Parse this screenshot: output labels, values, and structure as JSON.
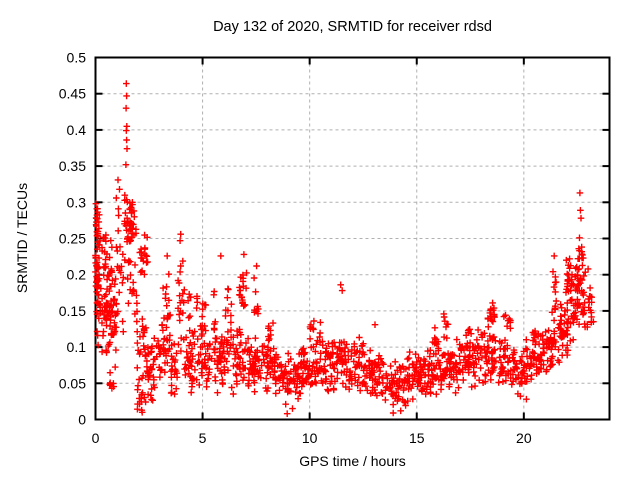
{
  "figure": {
    "title": "Day 132 of 2020, SRMTID for receiver rdsd",
    "xlabel": "GPS time / hours",
    "ylabel": "SRMTID / TECUs"
  },
  "chart_data": {
    "type": "scatter",
    "title": "Day 132 of 2020, SRMTID for receiver rdsd",
    "xlabel": "GPS time / hours",
    "ylabel": "SRMTID / TECUs",
    "xlim": [
      0,
      24
    ],
    "ylim": [
      0,
      0.5
    ],
    "xticks": [
      0,
      5,
      10,
      15,
      20
    ],
    "xtick_labels": [
      "0",
      "5",
      "10",
      "15",
      "20"
    ],
    "yticks": [
      0,
      0.05,
      0.1,
      0.15,
      0.2,
      0.25,
      0.3,
      0.35,
      0.4,
      0.45,
      0.5
    ],
    "ytick_labels": [
      "0",
      "0.05",
      "0.1",
      "0.15",
      "0.2",
      "0.25",
      "0.3",
      "0.35",
      "0.4",
      "0.45",
      "0.5"
    ],
    "grid": true,
    "legend": "none",
    "series_name": "SRMTID",
    "marker": "plus",
    "colors": {
      "marker": "#ff0000",
      "grid": "#b0b0b0",
      "axis": "#000000",
      "background": "#ffffff"
    },
    "outlier_points": [
      [
        1.44,
        0.464
      ],
      [
        1.45,
        0.447
      ],
      [
        1.43,
        0.43
      ],
      [
        1.46,
        0.405
      ],
      [
        1.44,
        0.399
      ],
      [
        1.45,
        0.386
      ],
      [
        1.47,
        0.374
      ],
      [
        1.42,
        0.352
      ],
      [
        1.05,
        0.331
      ],
      [
        1.12,
        0.318
      ],
      [
        0.97,
        0.306
      ],
      [
        0.02,
        0.298
      ],
      [
        0.06,
        0.291
      ],
      [
        3.35,
        0.226
      ],
      [
        3.95,
        0.247
      ],
      [
        3.98,
        0.256
      ],
      [
        5.85,
        0.226
      ],
      [
        6.93,
        0.228
      ],
      [
        7.52,
        0.212
      ],
      [
        11.45,
        0.186
      ],
      [
        11.52,
        0.178
      ],
      [
        13.05,
        0.131
      ],
      [
        14.25,
        0.012
      ],
      [
        2.18,
        0.01
      ],
      [
        20.12,
        0.028
      ],
      [
        21.42,
        0.226
      ],
      [
        22.6,
        0.251
      ],
      [
        22.62,
        0.313
      ],
      [
        22.64,
        0.289
      ],
      [
        22.67,
        0.278
      ],
      [
        23.0,
        0.208
      ],
      [
        8.95,
        0.008
      ],
      [
        9.2,
        0.015
      ],
      [
        13.9,
        0.009
      ]
    ],
    "density_bands": [
      [
        0.0,
        0.18,
        0.13,
        0.3,
        40
      ],
      [
        0.02,
        0.15,
        0.245,
        0.3,
        12
      ],
      [
        0.05,
        1.0,
        0.08,
        0.225,
        85
      ],
      [
        0.15,
        0.85,
        0.19,
        0.27,
        20
      ],
      [
        0.55,
        1.05,
        0.035,
        0.08,
        8
      ],
      [
        0.95,
        1.3,
        0.1,
        0.33,
        18
      ],
      [
        1.35,
        1.6,
        0.21,
        0.335,
        20
      ],
      [
        1.55,
        1.9,
        0.235,
        0.305,
        26
      ],
      [
        1.5,
        1.95,
        0.12,
        0.235,
        16
      ],
      [
        1.9,
        2.45,
        0.03,
        0.16,
        30
      ],
      [
        2.05,
        2.45,
        0.195,
        0.265,
        18
      ],
      [
        1.95,
        2.35,
        0.008,
        0.05,
        12
      ],
      [
        2.45,
        3.1,
        0.02,
        0.125,
        42
      ],
      [
        3.1,
        3.5,
        0.04,
        0.15,
        25
      ],
      [
        3.15,
        3.45,
        0.13,
        0.205,
        10
      ],
      [
        3.5,
        3.85,
        0.02,
        0.11,
        22
      ],
      [
        3.85,
        4.15,
        0.06,
        0.245,
        20
      ],
      [
        4.15,
        4.9,
        0.03,
        0.13,
        40
      ],
      [
        4.3,
        4.8,
        0.1,
        0.2,
        12
      ],
      [
        4.9,
        5.45,
        0.04,
        0.145,
        32
      ],
      [
        4.9,
        5.2,
        0.1,
        0.19,
        10
      ],
      [
        5.45,
        5.75,
        0.02,
        0.19,
        20
      ],
      [
        5.75,
        6.45,
        0.03,
        0.135,
        42
      ],
      [
        6.05,
        6.35,
        0.1,
        0.185,
        12
      ],
      [
        6.45,
        7.2,
        0.03,
        0.13,
        45
      ],
      [
        6.7,
        7.05,
        0.125,
        0.215,
        20
      ],
      [
        7.2,
        7.8,
        0.03,
        0.12,
        40
      ],
      [
        7.4,
        7.62,
        0.11,
        0.205,
        9
      ],
      [
        7.8,
        8.6,
        0.02,
        0.11,
        48
      ],
      [
        8.05,
        8.35,
        0.09,
        0.15,
        10
      ],
      [
        8.6,
        9.6,
        0.015,
        0.095,
        60
      ],
      [
        9.6,
        10.4,
        0.03,
        0.11,
        52
      ],
      [
        10.0,
        10.55,
        0.095,
        0.145,
        12
      ],
      [
        10.4,
        11.2,
        0.03,
        0.115,
        52
      ],
      [
        11.2,
        11.65,
        0.04,
        0.125,
        26
      ],
      [
        11.65,
        12.6,
        0.035,
        0.115,
        58
      ],
      [
        12.6,
        13.4,
        0.025,
        0.1,
        50
      ],
      [
        13.4,
        14.6,
        0.012,
        0.085,
        65
      ],
      [
        14.6,
        15.4,
        0.02,
        0.1,
        52
      ],
      [
        15.4,
        16.2,
        0.03,
        0.11,
        50
      ],
      [
        15.7,
        16.0,
        0.095,
        0.135,
        8
      ],
      [
        16.2,
        17.0,
        0.035,
        0.115,
        50
      ],
      [
        16.2,
        16.5,
        0.105,
        0.15,
        8
      ],
      [
        17.0,
        17.8,
        0.04,
        0.12,
        50
      ],
      [
        17.3,
        17.55,
        0.1,
        0.143,
        6
      ],
      [
        17.8,
        18.8,
        0.045,
        0.13,
        55
      ],
      [
        18.25,
        18.7,
        0.12,
        0.172,
        16
      ],
      [
        18.8,
        19.6,
        0.035,
        0.12,
        46
      ],
      [
        19.05,
        19.4,
        0.115,
        0.163,
        8
      ],
      [
        19.6,
        20.4,
        0.025,
        0.115,
        46
      ],
      [
        20.4,
        21.0,
        0.05,
        0.13,
        40
      ],
      [
        21.0,
        21.6,
        0.06,
        0.15,
        36
      ],
      [
        21.3,
        21.52,
        0.145,
        0.225,
        10
      ],
      [
        21.6,
        22.2,
        0.075,
        0.175,
        38
      ],
      [
        21.9,
        22.25,
        0.15,
        0.24,
        22
      ],
      [
        22.2,
        22.9,
        0.1,
        0.22,
        40
      ],
      [
        22.4,
        22.78,
        0.165,
        0.252,
        26
      ],
      [
        22.9,
        23.25,
        0.1,
        0.205,
        16
      ]
    ]
  }
}
